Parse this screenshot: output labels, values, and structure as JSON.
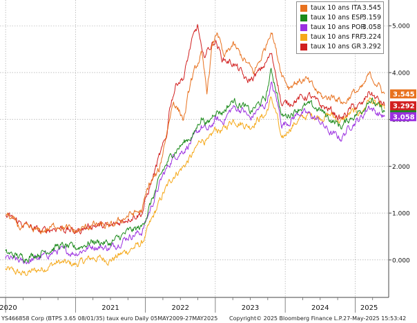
{
  "chart_data": {
    "type": "line",
    "y_ticks": [
      "0.000",
      "1.000",
      "2.000",
      "3.000",
      "4.000",
      "5.000"
    ],
    "ylim": [
      -0.8,
      5.55
    ],
    "x_labels": [
      "2020",
      "2021",
      "2022",
      "2023",
      "2024",
      "2025"
    ],
    "grid": true,
    "legend_position": "top-right",
    "series": [
      {
        "name": "taux 10 ans ITA",
        "value": "3.545",
        "color": "#e8711e",
        "points": [
          [
            2020.0,
            1.0
          ],
          [
            2020.2,
            0.7
          ],
          [
            2020.5,
            0.6
          ],
          [
            2020.75,
            0.75
          ],
          [
            2021.0,
            0.6
          ],
          [
            2021.25,
            0.75
          ],
          [
            2021.5,
            0.7
          ],
          [
            2021.75,
            0.95
          ],
          [
            2021.95,
            1.05
          ],
          [
            2022.05,
            1.6
          ],
          [
            2022.2,
            1.9
          ],
          [
            2022.3,
            2.7
          ],
          [
            2022.4,
            3.4
          ],
          [
            2022.55,
            3.0
          ],
          [
            2022.65,
            3.8
          ],
          [
            2022.75,
            4.2
          ],
          [
            2022.8,
            4.4
          ],
          [
            2022.88,
            3.6
          ],
          [
            2022.95,
            4.5
          ],
          [
            2023.03,
            4.9
          ],
          [
            2023.12,
            4.3
          ],
          [
            2023.25,
            4.6
          ],
          [
            2023.35,
            4.4
          ],
          [
            2023.45,
            4.2
          ],
          [
            2023.55,
            4.0
          ],
          [
            2023.65,
            4.3
          ],
          [
            2023.72,
            4.55
          ],
          [
            2023.8,
            4.95
          ],
          [
            2023.88,
            4.4
          ],
          [
            2023.95,
            4.0
          ],
          [
            2024.05,
            3.7
          ],
          [
            2024.15,
            3.8
          ],
          [
            2024.3,
            3.85
          ],
          [
            2024.45,
            3.6
          ],
          [
            2024.55,
            3.45
          ],
          [
            2024.7,
            3.5
          ],
          [
            2024.85,
            3.35
          ],
          [
            2024.95,
            3.55
          ],
          [
            2025.1,
            3.65
          ],
          [
            2025.2,
            3.95
          ],
          [
            2025.3,
            3.8
          ],
          [
            2025.42,
            3.545
          ]
        ]
      },
      {
        "name": "taux 10 ans ESP",
        "value": "3.159",
        "color": "#1b8a1b",
        "points": [
          [
            2020.0,
            0.15
          ],
          [
            2020.25,
            0.05
          ],
          [
            2020.5,
            0.15
          ],
          [
            2020.75,
            0.3
          ],
          [
            2021.0,
            0.25
          ],
          [
            2021.25,
            0.4
          ],
          [
            2021.5,
            0.35
          ],
          [
            2021.75,
            0.6
          ],
          [
            2021.95,
            0.7
          ],
          [
            2022.05,
            1.1
          ],
          [
            2022.25,
            1.9
          ],
          [
            2022.4,
            2.3
          ],
          [
            2022.55,
            2.5
          ],
          [
            2022.7,
            2.7
          ],
          [
            2022.8,
            3.05
          ],
          [
            2022.9,
            2.9
          ],
          [
            2023.0,
            3.2
          ],
          [
            2023.1,
            3.15
          ],
          [
            2023.25,
            3.4
          ],
          [
            2023.4,
            3.3
          ],
          [
            2023.5,
            3.15
          ],
          [
            2023.6,
            3.3
          ],
          [
            2023.72,
            3.45
          ],
          [
            2023.8,
            4.05
          ],
          [
            2023.88,
            3.6
          ],
          [
            2023.95,
            3.05
          ],
          [
            2024.05,
            3.1
          ],
          [
            2024.2,
            3.25
          ],
          [
            2024.35,
            3.3
          ],
          [
            2024.5,
            3.2
          ],
          [
            2024.65,
            3.0
          ],
          [
            2024.8,
            2.85
          ],
          [
            2024.95,
            3.05
          ],
          [
            2025.1,
            3.2
          ],
          [
            2025.2,
            3.45
          ],
          [
            2025.3,
            3.3
          ],
          [
            2025.42,
            3.159
          ]
        ]
      },
      {
        "name": "taux 10 ans POR",
        "value": "3.058",
        "color": "#9b30e0",
        "points": [
          [
            2020.0,
            0.05
          ],
          [
            2020.25,
            -0.05
          ],
          [
            2020.5,
            0.05
          ],
          [
            2020.75,
            0.2
          ],
          [
            2021.0,
            0.15
          ],
          [
            2021.25,
            0.3
          ],
          [
            2021.5,
            0.25
          ],
          [
            2021.75,
            0.5
          ],
          [
            2021.95,
            0.6
          ],
          [
            2022.05,
            1.0
          ],
          [
            2022.25,
            1.8
          ],
          [
            2022.4,
            2.2
          ],
          [
            2022.55,
            2.35
          ],
          [
            2022.7,
            2.6
          ],
          [
            2022.8,
            2.85
          ],
          [
            2022.9,
            2.75
          ],
          [
            2023.0,
            3.0
          ],
          [
            2023.1,
            2.95
          ],
          [
            2023.25,
            3.25
          ],
          [
            2023.4,
            3.2
          ],
          [
            2023.5,
            3.0
          ],
          [
            2023.6,
            3.2
          ],
          [
            2023.72,
            3.3
          ],
          [
            2023.8,
            3.75
          ],
          [
            2023.88,
            3.4
          ],
          [
            2023.95,
            2.9
          ],
          [
            2024.05,
            2.95
          ],
          [
            2024.2,
            3.15
          ],
          [
            2024.35,
            3.1
          ],
          [
            2024.5,
            2.95
          ],
          [
            2024.65,
            2.7
          ],
          [
            2024.8,
            2.6
          ],
          [
            2024.95,
            2.9
          ],
          [
            2025.1,
            3.05
          ],
          [
            2025.2,
            3.3
          ],
          [
            2025.3,
            3.15
          ],
          [
            2025.42,
            3.058
          ]
        ]
      },
      {
        "name": "taux 10 ans FRF",
        "value": "3.224",
        "color": "#f5a818",
        "points": [
          [
            2020.0,
            -0.2
          ],
          [
            2020.25,
            -0.3
          ],
          [
            2020.5,
            -0.2
          ],
          [
            2020.75,
            -0.05
          ],
          [
            2021.0,
            -0.1
          ],
          [
            2021.25,
            0.05
          ],
          [
            2021.5,
            0.0
          ],
          [
            2021.75,
            0.2
          ],
          [
            2021.95,
            0.35
          ],
          [
            2022.05,
            0.7
          ],
          [
            2022.25,
            1.4
          ],
          [
            2022.4,
            1.8
          ],
          [
            2022.55,
            2.0
          ],
          [
            2022.7,
            2.3
          ],
          [
            2022.8,
            2.6
          ],
          [
            2022.9,
            2.5
          ],
          [
            2023.0,
            2.8
          ],
          [
            2023.1,
            2.75
          ],
          [
            2023.25,
            3.0
          ],
          [
            2023.4,
            2.9
          ],
          [
            2023.5,
            2.85
          ],
          [
            2023.6,
            3.0
          ],
          [
            2023.72,
            3.1
          ],
          [
            2023.8,
            3.45
          ],
          [
            2023.88,
            3.1
          ],
          [
            2023.95,
            2.5
          ],
          [
            2024.05,
            2.8
          ],
          [
            2024.2,
            3.0
          ],
          [
            2024.35,
            3.1
          ],
          [
            2024.5,
            3.05
          ],
          [
            2024.65,
            3.1
          ],
          [
            2024.8,
            2.95
          ],
          [
            2024.95,
            3.15
          ],
          [
            2025.1,
            3.15
          ],
          [
            2025.2,
            3.45
          ],
          [
            2025.3,
            3.3
          ],
          [
            2025.42,
            3.224
          ]
        ]
      },
      {
        "name": "taux 10 ans GR",
        "value": "3.292",
        "color": "#d11f1f",
        "points": [
          [
            2020.0,
            0.95
          ],
          [
            2020.2,
            0.8
          ],
          [
            2020.5,
            0.6
          ],
          [
            2020.75,
            0.7
          ],
          [
            2021.0,
            0.6
          ],
          [
            2021.25,
            0.75
          ],
          [
            2021.5,
            0.7
          ],
          [
            2021.75,
            0.9
          ],
          [
            2021.95,
            1.0
          ],
          [
            2022.05,
            1.5
          ],
          [
            2022.2,
            2.2
          ],
          [
            2022.3,
            2.6
          ],
          [
            2022.35,
            3.3
          ],
          [
            2022.45,
            3.8
          ],
          [
            2022.55,
            3.9
          ],
          [
            2022.65,
            4.6
          ],
          [
            2022.75,
            5.0
          ],
          [
            2022.82,
            4.3
          ],
          [
            2022.9,
            4.5
          ],
          [
            2023.0,
            4.7
          ],
          [
            2023.1,
            4.3
          ],
          [
            2023.25,
            4.2
          ],
          [
            2023.35,
            4.05
          ],
          [
            2023.45,
            3.8
          ],
          [
            2023.55,
            3.9
          ],
          [
            2023.62,
            4.0
          ],
          [
            2023.72,
            4.2
          ],
          [
            2023.8,
            4.4
          ],
          [
            2023.88,
            3.9
          ],
          [
            2023.95,
            3.3
          ],
          [
            2024.05,
            3.35
          ],
          [
            2024.2,
            3.45
          ],
          [
            2024.35,
            3.5
          ],
          [
            2024.5,
            3.3
          ],
          [
            2024.65,
            3.2
          ],
          [
            2024.8,
            3.0
          ],
          [
            2024.95,
            3.25
          ],
          [
            2025.1,
            3.3
          ],
          [
            2025.2,
            3.6
          ],
          [
            2025.3,
            3.45
          ],
          [
            2025.42,
            3.292
          ]
        ]
      }
    ]
  },
  "footer": {
    "left": "YS466858 Corp (BTPS 3.65 08/01/35) taux euro  Daily 05MAY2009-27MAY2025",
    "center": "Copyright© 2025 Bloomberg Finance L.P.",
    "right": "27-May-2025 15:53:42"
  }
}
